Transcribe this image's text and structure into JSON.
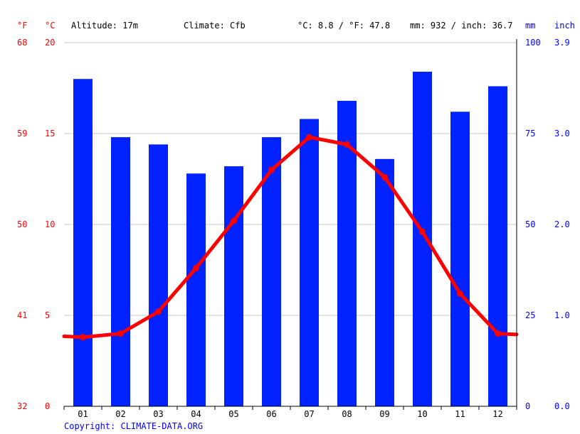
{
  "header": {
    "unit_f": "°F",
    "unit_c": "°C",
    "altitude": "Altitude: 17m",
    "climate": "Climate: Cfb",
    "temp_summary": "°C: 8.8 / °F: 47.8",
    "precip_summary": "mm: 932 / inch: 36.7",
    "unit_mm": "mm",
    "unit_inch": "inch"
  },
  "footer": {
    "copyright": "Copyright: CLIMATE-DATA.ORG"
  },
  "colors": {
    "precipitation": "#0022ff",
    "temperature": "#ff0000",
    "grid": "#c8c8c8"
  },
  "chart_data": {
    "type": "bar+line",
    "categories": [
      "01",
      "02",
      "03",
      "04",
      "05",
      "06",
      "07",
      "08",
      "09",
      "10",
      "11",
      "12"
    ],
    "series": [
      {
        "values": [
          90,
          74,
          72,
          64,
          66,
          74,
          79,
          84,
          68,
          92,
          81,
          88
        ]
      },
      {
        "values": [
          3.8,
          4.0,
          5.2,
          7.6,
          10.2,
          13.0,
          14.8,
          14.4,
          12.6,
          9.6,
          6.2,
          4.0
        ]
      }
    ],
    "axes": {
      "fahrenheit_ticks": [
        "32",
        "41",
        "50",
        "59",
        "68"
      ],
      "celsius_ticks": [
        "0",
        "5",
        "10",
        "15",
        "20"
      ],
      "mm_ticks": [
        "0",
        "25",
        "50",
        "75",
        "100"
      ],
      "inch_ticks": [
        "0.0",
        "1.0",
        "2.0",
        "3.0",
        "3.9"
      ],
      "celsius_range": [
        0,
        20
      ],
      "mm_range": [
        0,
        100
      ]
    },
    "grid": true
  }
}
